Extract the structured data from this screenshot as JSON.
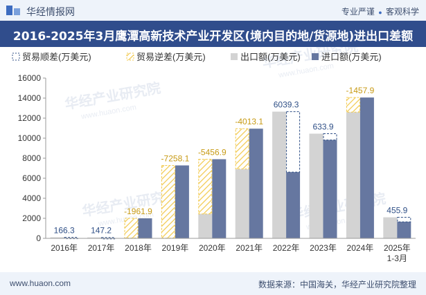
{
  "header": {
    "brand": "华经情报网",
    "tagline_left": "专业严谨",
    "tagline_right": "客观科学",
    "logo_icon": "huajing-logo-icon"
  },
  "title": "2016-2025年3月鹰潭高新技术产业开发区(境内目的地/货源地)进出口差额",
  "footer": {
    "site": "www.huaon.com",
    "source": "数据来源：中国海关，华经产业研究院整理"
  },
  "watermark": "华经产业研究院",
  "watermark_url": "www.huaon.com",
  "colors": {
    "title_bg": "#304d8c",
    "surplus": "#2f4f86",
    "deficit": "#f2c94c",
    "export": "#d3d3d3",
    "import": "#6677a0"
  },
  "chart_data": {
    "type": "bar",
    "categories": [
      "2016年",
      "2017年",
      "2018年",
      "2019年",
      "2020年",
      "2021年",
      "2022年",
      "2023年",
      "2024年",
      "2025年\n1-3月"
    ],
    "series": [
      {
        "name": "贸易顺差(万美元)",
        "values": [
          166.3,
          147.2,
          null,
          null,
          null,
          null,
          6039.3,
          633.9,
          null,
          455.9
        ]
      },
      {
        "name": "贸易逆差(万美元)",
        "values": [
          null,
          null,
          -1961.9,
          -7258.1,
          -5456.9,
          -4013.1,
          null,
          null,
          -1457.9,
          null
        ]
      },
      {
        "name": "出口额(万美元)",
        "values": [
          100,
          90,
          30,
          20,
          2450,
          6900,
          12650,
          10450,
          12600,
          2100
        ]
      },
      {
        "name": "进口额(万美元)",
        "values": [
          0,
          0,
          2000,
          7280,
          7900,
          10950,
          6610,
          9820,
          14060,
          1650
        ]
      }
    ],
    "data_labels": [
      "166.3",
      "147.2",
      "-1961.9",
      "-7258.1",
      "-5456.9",
      "-4013.1",
      "6039.3",
      "633.9",
      "-1457.9",
      "455.9"
    ],
    "ylim": [
      0,
      16000
    ],
    "yticks": [
      0,
      2000,
      4000,
      6000,
      8000,
      10000,
      12000,
      14000,
      16000
    ],
    "legend_position": "top",
    "grid": false
  }
}
